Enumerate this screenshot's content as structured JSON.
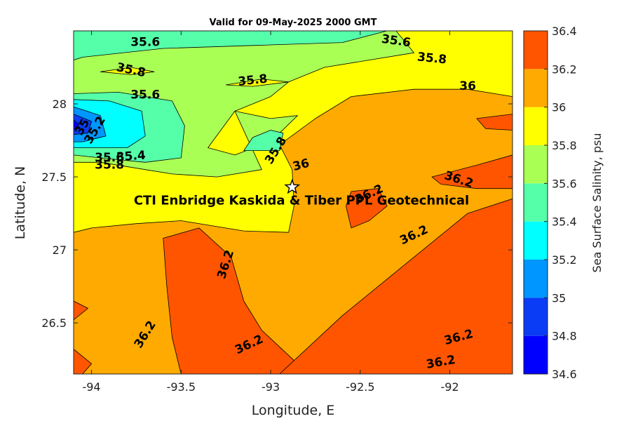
{
  "chart_data": {
    "type": "contour",
    "title": "Valid for 09-May-2025 2000 GMT",
    "xlabel": "Longitude, E",
    "ylabel": "Latitude, N",
    "xlim": [
      -94.1,
      -91.65
    ],
    "ylim": [
      26.15,
      28.5
    ],
    "xticks": [
      -94,
      -93.5,
      -93,
      -92.5,
      -92
    ],
    "yticks": [
      26.5,
      27,
      27.5,
      28
    ],
    "colorbar": {
      "label": "Sea Surface Salinity, psu",
      "ticks": [
        34.6,
        34.8,
        35,
        35.2,
        35.4,
        35.6,
        35.8,
        36,
        36.2,
        36.4
      ],
      "colors": [
        "#0000ff",
        "#0a3cf5",
        "#0096ff",
        "#00ffff",
        "#55ffaa",
        "#aaff55",
        "#ffff00",
        "#ffaa00",
        "#ff5500"
      ]
    },
    "annotation": {
      "text": "CTI Enbridge  Kaskida & Tiber PPL Geotechnical",
      "marker": "star",
      "lon": -92.88,
      "lat": 27.43
    },
    "bands": [
      {
        "level": 36.0,
        "color": "#ffaa00",
        "polygon": [
          [
            -94.1,
            28.5
          ],
          [
            -91.65,
            28.5
          ],
          [
            -91.65,
            26.15
          ],
          [
            -94.1,
            26.15
          ]
        ]
      },
      {
        "level": 35.8,
        "color": "#ffff00",
        "polygon": [
          [
            -94.1,
            28.5
          ],
          [
            -91.65,
            28.5
          ],
          [
            -91.65,
            28.05
          ],
          [
            -91.9,
            28.1
          ],
          [
            -92.2,
            28.1
          ],
          [
            -92.55,
            28.05
          ],
          [
            -92.75,
            27.9
          ],
          [
            -92.95,
            27.72
          ],
          [
            -92.88,
            27.55
          ],
          [
            -92.87,
            27.3
          ],
          [
            -92.9,
            27.12
          ],
          [
            -93.15,
            27.13
          ],
          [
            -93.5,
            27.2
          ],
          [
            -93.75,
            27.18
          ],
          [
            -94.0,
            27.15
          ],
          [
            -94.1,
            27.12
          ]
        ]
      },
      {
        "level": 36.2,
        "color": "#ff5500",
        "polygon": [
          [
            -93.6,
            27.08
          ],
          [
            -93.4,
            27.15
          ],
          [
            -93.22,
            26.95
          ],
          [
            -93.15,
            26.65
          ],
          [
            -93.05,
            26.45
          ],
          [
            -92.85,
            26.22
          ],
          [
            -92.7,
            26.15
          ],
          [
            -93.5,
            26.15
          ],
          [
            -93.55,
            26.4
          ],
          [
            -93.58,
            26.75
          ]
        ]
      },
      {
        "level": 36.2,
        "color": "#ff5500",
        "polygon": [
          [
            -92.95,
            26.15
          ],
          [
            -92.6,
            26.55
          ],
          [
            -92.3,
            26.85
          ],
          [
            -92.1,
            27.05
          ],
          [
            -91.9,
            27.25
          ],
          [
            -91.65,
            27.35
          ],
          [
            -91.65,
            26.15
          ]
        ]
      },
      {
        "level": 36.2,
        "color": "#ff5500",
        "polygon": [
          [
            -92.55,
            27.4
          ],
          [
            -92.4,
            27.42
          ],
          [
            -92.35,
            27.3
          ],
          [
            -92.45,
            27.2
          ],
          [
            -92.55,
            27.15
          ],
          [
            -92.58,
            27.3
          ]
        ]
      },
      {
        "level": 36.2,
        "color": "#ff5500",
        "polygon": [
          [
            -92.1,
            27.5
          ],
          [
            -91.85,
            27.58
          ],
          [
            -91.65,
            27.65
          ],
          [
            -91.65,
            27.42
          ],
          [
            -91.85,
            27.42
          ],
          [
            -92.05,
            27.45
          ]
        ]
      },
      {
        "level": 36.2,
        "color": "#ff5500",
        "polygon": [
          [
            -91.85,
            27.9
          ],
          [
            -91.65,
            27.93
          ],
          [
            -91.65,
            27.82
          ],
          [
            -91.8,
            27.83
          ]
        ]
      },
      {
        "level": 36.2,
        "color": "#ff5500",
        "polygon": [
          [
            -94.1,
            26.65
          ],
          [
            -94.02,
            26.6
          ],
          [
            -94.1,
            26.52
          ]
        ]
      },
      {
        "level": 36.2,
        "color": "#ff5500",
        "polygon": [
          [
            -94.1,
            26.32
          ],
          [
            -94.0,
            26.22
          ],
          [
            -94.05,
            26.15
          ],
          [
            -94.1,
            26.15
          ]
        ]
      },
      {
        "level": 35.6,
        "color": "#aaff55",
        "polygon": [
          [
            -94.1,
            28.5
          ],
          [
            -92.3,
            28.5
          ],
          [
            -92.2,
            28.35
          ],
          [
            -92.7,
            28.25
          ],
          [
            -92.9,
            28.15
          ],
          [
            -93.0,
            28.05
          ],
          [
            -93.2,
            27.95
          ],
          [
            -93.35,
            27.7
          ],
          [
            -93.2,
            27.65
          ],
          [
            -93.05,
            27.72
          ],
          [
            -92.95,
            27.8
          ],
          [
            -92.85,
            27.92
          ],
          [
            -93.0,
            27.9
          ],
          [
            -93.2,
            27.95
          ],
          [
            -93.05,
            27.55
          ],
          [
            -93.3,
            27.5
          ],
          [
            -93.55,
            27.52
          ],
          [
            -93.7,
            27.55
          ],
          [
            -93.95,
            27.6
          ],
          [
            -94.1,
            27.6
          ]
        ]
      },
      {
        "level": 35.8,
        "color": "#ffff00",
        "polygon": [
          [
            -93.95,
            28.22
          ],
          [
            -93.78,
            28.25
          ],
          [
            -93.65,
            28.22
          ],
          [
            -93.78,
            28.2
          ]
        ]
      },
      {
        "level": 35.8,
        "color": "#ffff00",
        "polygon": [
          [
            -93.25,
            28.13
          ],
          [
            -93.05,
            28.17
          ],
          [
            -92.9,
            28.15
          ],
          [
            -93.1,
            28.12
          ]
        ]
      },
      {
        "level": 35.4,
        "color": "#55ffaa",
        "polygon": [
          [
            -94.1,
            28.5
          ],
          [
            -92.35,
            28.5
          ],
          [
            -92.6,
            28.42
          ],
          [
            -93.1,
            28.4
          ],
          [
            -93.6,
            28.38
          ],
          [
            -94.05,
            28.32
          ],
          [
            -94.1,
            28.3
          ]
        ]
      },
      {
        "level": 35.4,
        "color": "#55ffaa",
        "polygon": [
          [
            -94.1,
            28.07
          ],
          [
            -93.85,
            28.08
          ],
          [
            -93.55,
            28.02
          ],
          [
            -93.48,
            27.85
          ],
          [
            -93.5,
            27.63
          ],
          [
            -93.7,
            27.6
          ],
          [
            -93.95,
            27.63
          ],
          [
            -94.1,
            27.65
          ]
        ]
      },
      {
        "level": 35.4,
        "color": "#55ffaa",
        "polygon": [
          [
            -93.0,
            27.82
          ],
          [
            -92.93,
            27.8
          ],
          [
            -92.95,
            27.68
          ],
          [
            -93.15,
            27.68
          ],
          [
            -93.1,
            27.77
          ]
        ]
      },
      {
        "level": 35.2,
        "color": "#00ffff",
        "polygon": [
          [
            -94.1,
            28.03
          ],
          [
            -93.9,
            28.02
          ],
          [
            -93.72,
            27.95
          ],
          [
            -93.7,
            27.78
          ],
          [
            -93.8,
            27.7
          ],
          [
            -94.1,
            27.7
          ]
        ]
      },
      {
        "level": 35.0,
        "color": "#0096ff",
        "polygon": [
          [
            -94.1,
            27.98
          ],
          [
            -93.95,
            27.92
          ],
          [
            -93.92,
            27.78
          ],
          [
            -94.05,
            27.74
          ],
          [
            -94.1,
            27.74
          ]
        ]
      },
      {
        "level": 34.8,
        "color": "#0a3cf5",
        "polygon": [
          [
            -94.1,
            27.93
          ],
          [
            -94.0,
            27.88
          ],
          [
            -94.02,
            27.8
          ],
          [
            -94.1,
            27.79
          ]
        ]
      },
      {
        "level": 34.6,
        "color": "#0000ff",
        "polygon": [
          [
            -94.1,
            27.89
          ],
          [
            -94.07,
            27.86
          ],
          [
            -94.1,
            27.82
          ]
        ]
      }
    ],
    "contour_labels": [
      {
        "text": "35.6",
        "lon": -93.7,
        "lat": 28.42,
        "angle": 0
      },
      {
        "text": "35.6",
        "lon": -92.3,
        "lat": 28.43,
        "angle": 8
      },
      {
        "text": "35.8",
        "lon": -93.78,
        "lat": 28.23,
        "angle": 12
      },
      {
        "text": "35.8",
        "lon": -92.1,
        "lat": 28.31,
        "angle": 6
      },
      {
        "text": "35.8",
        "lon": -93.1,
        "lat": 28.16,
        "angle": -6
      },
      {
        "text": "35.6",
        "lon": -93.7,
        "lat": 28.06,
        "angle": 0
      },
      {
        "text": "36",
        "lon": -91.9,
        "lat": 28.12,
        "angle": 0
      },
      {
        "text": "35",
        "lon": -94.05,
        "lat": 27.84,
        "angle": -60
      },
      {
        "text": "35.2",
        "lon": -93.98,
        "lat": 27.82,
        "angle": -60
      },
      {
        "text": "35.4",
        "lon": -93.78,
        "lat": 27.64,
        "angle": -4
      },
      {
        "text": "35.6",
        "lon": -93.9,
        "lat": 27.63,
        "angle": 0
      },
      {
        "text": "35.8",
        "lon": -93.9,
        "lat": 27.58,
        "angle": 0
      },
      {
        "text": "35.8",
        "lon": -92.97,
        "lat": 27.68,
        "angle": -58
      },
      {
        "text": "36",
        "lon": -92.83,
        "lat": 27.58,
        "angle": -15
      },
      {
        "text": "36.2",
        "lon": -92.45,
        "lat": 27.38,
        "angle": -25
      },
      {
        "text": "36.2",
        "lon": -91.95,
        "lat": 27.48,
        "angle": 18
      },
      {
        "text": "36.2",
        "lon": -92.2,
        "lat": 27.1,
        "angle": -25
      },
      {
        "text": "36.2",
        "lon": -93.25,
        "lat": 26.9,
        "angle": -72
      },
      {
        "text": "36.2",
        "lon": -93.7,
        "lat": 26.42,
        "angle": -58
      },
      {
        "text": "36.2",
        "lon": -93.12,
        "lat": 26.35,
        "angle": -25
      },
      {
        "text": "36.2",
        "lon": -91.95,
        "lat": 26.4,
        "angle": -15
      },
      {
        "text": "36.2",
        "lon": -92.05,
        "lat": 26.23,
        "angle": -10
      }
    ]
  }
}
